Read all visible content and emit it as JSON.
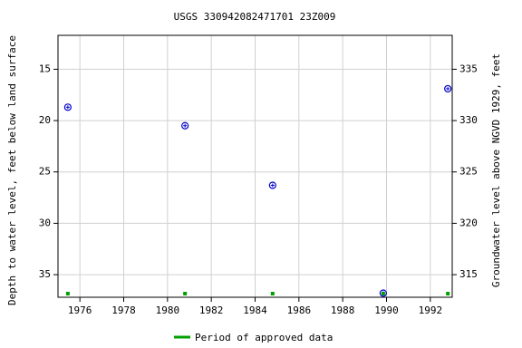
{
  "chart_data": {
    "type": "scatter",
    "title": "USGS 330942082471701 23Z009",
    "y_label": "Depth to water level, feet below land surface",
    "y2_label": "Groundwater level above NGVD 1929, feet",
    "x": [
      1975.45,
      1980.8,
      1984.8,
      1989.85,
      1992.8
    ],
    "series": [
      {
        "name": "Depth to water level",
        "color": "#0000cc",
        "values": [
          18.7,
          20.5,
          26.3,
          36.8,
          16.9
        ]
      }
    ],
    "approved": {
      "name": "Period of approved data",
      "color": "#00a000",
      "x": [
        1975.45,
        1980.8,
        1984.8,
        1989.85,
        1992.8
      ]
    },
    "xlim": [
      1975.0,
      1993.0
    ],
    "xticks": [
      1976,
      1978,
      1980,
      1982,
      1984,
      1986,
      1988,
      1990,
      1992
    ],
    "ylim": [
      11.7,
      37.2
    ],
    "y_inverted": true,
    "yticks": [
      15,
      20,
      25,
      30,
      35
    ],
    "y2lim": [
      338.3,
      312.8
    ],
    "y2ticks": [
      315,
      320,
      325,
      330,
      335
    ],
    "grid": true
  }
}
